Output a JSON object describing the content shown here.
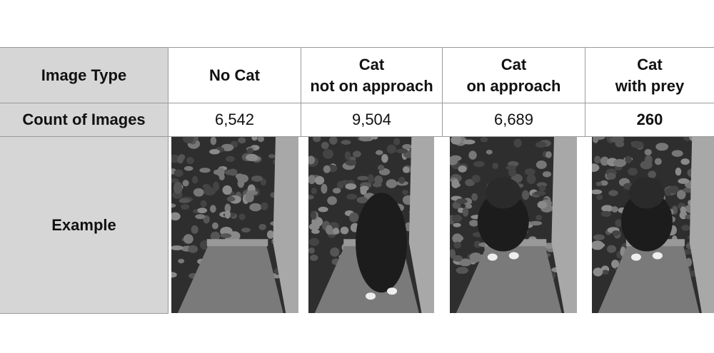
{
  "table": {
    "header": [
      [
        "Image Type"
      ],
      [
        "No Cat"
      ],
      [
        "Cat",
        "not on approach"
      ],
      [
        "Cat",
        "on approach"
      ],
      [
        "Cat",
        "with prey"
      ]
    ],
    "rows": [
      [
        "Count of Images",
        "6,542",
        "9,504",
        "6,689",
        "260"
      ],
      [
        "Example"
      ]
    ]
  }
}
